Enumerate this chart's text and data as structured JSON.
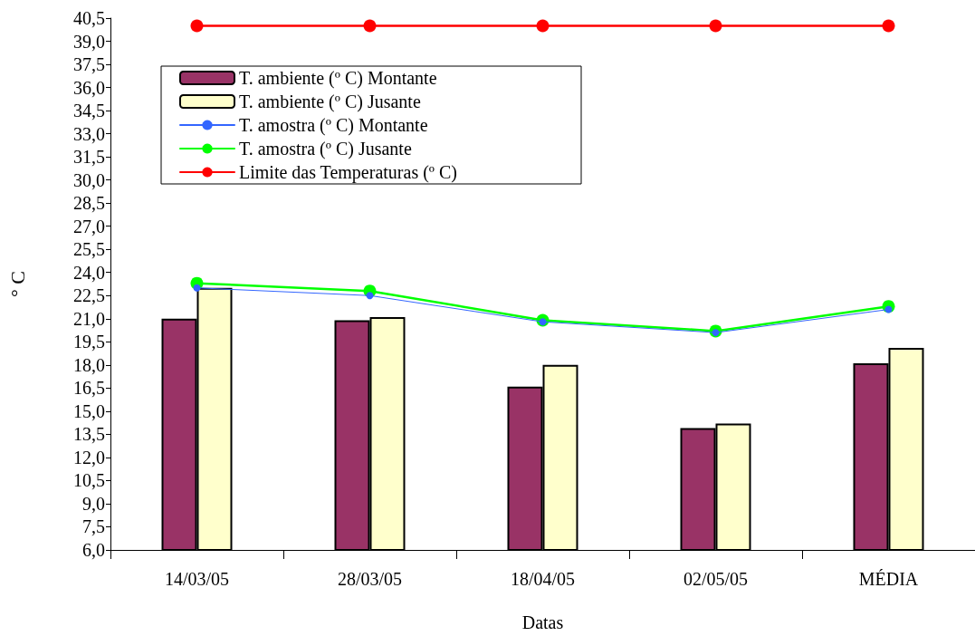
{
  "chart_data": {
    "type": "bar",
    "xlabel": "Datas",
    "ylabel": "° C",
    "categories": [
      "14/03/05",
      "28/03/05",
      "18/04/05",
      "02/05/05",
      "MÉDIA"
    ],
    "series": [
      {
        "name": "T. ambiente (º C) Montante",
        "color": "#993366",
        "values": [
          21.0,
          20.9,
          16.6,
          13.9,
          18.1
        ]
      },
      {
        "name": "T. ambiente (º C) Jusante",
        "color": "#ffffcc",
        "values": [
          23.0,
          21.1,
          18.0,
          14.2,
          19.1
        ]
      },
      {
        "name": "T. amostra (º C) Montante",
        "type": "line",
        "color": "#3366ff",
        "values": [
          23.0,
          22.5,
          20.8,
          20.1,
          21.6
        ]
      },
      {
        "name": "T. amostra (º C) Jusante",
        "type": "line",
        "color": "#00ff00",
        "values": [
          23.3,
          22.8,
          20.9,
          20.2,
          21.8
        ]
      },
      {
        "name": "Limite das Temperaturas (º C)",
        "type": "line",
        "color": "#ff0000",
        "values": [
          40.0,
          40.0,
          40.0,
          40.0,
          40.0
        ]
      }
    ],
    "ylim": [
      6.0,
      40.5
    ],
    "yticks": [
      {
        "value": 6,
        "label": "6,0"
      },
      {
        "value": 7.5,
        "label": "7,5"
      },
      {
        "value": 9,
        "label": "9,0"
      },
      {
        "value": 10.5,
        "label": "10,5"
      },
      {
        "value": 12,
        "label": "12,0"
      },
      {
        "value": 13.5,
        "label": "13,5"
      },
      {
        "value": 15,
        "label": "15,0"
      },
      {
        "value": 16.5,
        "label": "16,5"
      },
      {
        "value": 18,
        "label": "18,0"
      },
      {
        "value": 19.5,
        "label": "19,5"
      },
      {
        "value": 21,
        "label": "21,0"
      },
      {
        "value": 22.5,
        "label": "22,5"
      },
      {
        "value": 24,
        "label": "24,0"
      },
      {
        "value": 25.5,
        "label": "25,5"
      },
      {
        "value": 27,
        "label": "27,0"
      },
      {
        "value": 28.5,
        "label": "28,5"
      },
      {
        "value": 30,
        "label": "30,0"
      },
      {
        "value": 31.5,
        "label": "31,5"
      },
      {
        "value": 33,
        "label": "33,0"
      },
      {
        "value": 34.5,
        "label": "34,5"
      },
      {
        "value": 36,
        "label": "36,0"
      },
      {
        "value": 37.5,
        "label": "37,5"
      },
      {
        "value": 39,
        "label": "39,0"
      },
      {
        "value": 40.5,
        "label": "40,5"
      }
    ],
    "grid": false,
    "legend": "top",
    "marker": "circle",
    "line_style": "solid"
  }
}
